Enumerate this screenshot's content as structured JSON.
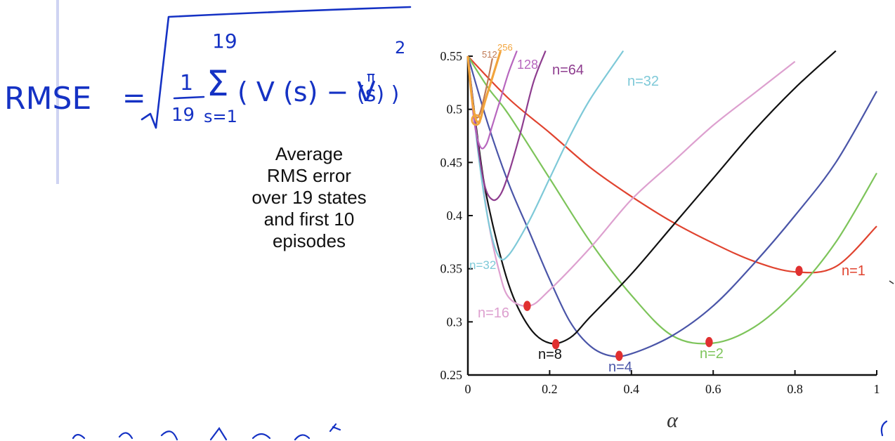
{
  "formula": {
    "lhs": "RMSE",
    "equals": "=",
    "numerator": "1",
    "denominator": "19",
    "sum_upper": "19",
    "sum_lower": "s=1",
    "body": "( V (s) − V",
    "superscript": "π",
    "body_end": "(s) )",
    "power": "2"
  },
  "caption": {
    "lines": [
      "Average",
      "RMS error",
      "over 19 states",
      "and first 10",
      "episodes"
    ]
  },
  "colors": {
    "n1": "#e0432f",
    "n2": "#7dc45a",
    "n4": "#4a55a8",
    "n8": "#111111",
    "n16": "#dda0cf",
    "n32": "#7ec9d8",
    "n64": "#8e3d8f",
    "n128": "#b766be",
    "n256": "#f2a43c",
    "n512": "#bf7a55",
    "annotation": "#e03030",
    "ink": "#1532c4"
  },
  "chart_data": {
    "type": "line",
    "title": "",
    "xlabel": "α",
    "ylabel": "",
    "xlim": [
      0,
      1
    ],
    "ylim": [
      0.25,
      0.55
    ],
    "xticks": [
      "0",
      "0.2",
      "0.4",
      "0.6",
      "0.8",
      "1"
    ],
    "yticks": [
      "0.25",
      "0.3",
      "0.35",
      "0.4",
      "0.45",
      "0.5",
      "0.55"
    ],
    "series": [
      {
        "name": "n=1",
        "label": "n=1",
        "color": "n1",
        "x": [
          0,
          0.1,
          0.2,
          0.3,
          0.4,
          0.5,
          0.6,
          0.7,
          0.8,
          0.9,
          1.0
        ],
        "y": [
          0.55,
          0.51,
          0.478,
          0.445,
          0.418,
          0.394,
          0.374,
          0.357,
          0.347,
          0.352,
          0.39
        ]
      },
      {
        "name": "n=2",
        "label": "n=2",
        "color": "n2",
        "x": [
          0,
          0.05,
          0.1,
          0.2,
          0.3,
          0.4,
          0.5,
          0.6,
          0.7,
          0.8,
          0.9,
          1.0
        ],
        "y": [
          0.55,
          0.52,
          0.495,
          0.435,
          0.375,
          0.325,
          0.287,
          0.28,
          0.295,
          0.328,
          0.375,
          0.44
        ]
      },
      {
        "name": "n=4",
        "label": "n=4",
        "color": "n4",
        "x": [
          0,
          0.05,
          0.1,
          0.15,
          0.2,
          0.25,
          0.3,
          0.35,
          0.4,
          0.5,
          0.6,
          0.7,
          0.8,
          0.9,
          1.0
        ],
        "y": [
          0.55,
          0.485,
          0.43,
          0.385,
          0.34,
          0.3,
          0.277,
          0.268,
          0.27,
          0.287,
          0.315,
          0.355,
          0.4,
          0.45,
          0.517
        ]
      },
      {
        "name": "n=8",
        "label": "n=8",
        "color": "n8",
        "x": [
          0,
          0.025,
          0.05,
          0.1,
          0.15,
          0.2,
          0.25,
          0.3,
          0.4,
          0.5,
          0.6,
          0.7,
          0.8,
          0.9
        ],
        "y": [
          0.55,
          0.47,
          0.41,
          0.335,
          0.295,
          0.28,
          0.285,
          0.305,
          0.345,
          0.39,
          0.435,
          0.48,
          0.52,
          0.555
        ]
      },
      {
        "name": "n=16",
        "label": "n=16",
        "color": "n16",
        "x": [
          0,
          0.025,
          0.05,
          0.075,
          0.1,
          0.15,
          0.2,
          0.3,
          0.4,
          0.5,
          0.6,
          0.7,
          0.8
        ],
        "y": [
          0.55,
          0.465,
          0.395,
          0.35,
          0.323,
          0.315,
          0.33,
          0.37,
          0.415,
          0.45,
          0.485,
          0.515,
          0.545
        ]
      },
      {
        "name": "n=32",
        "label": "n=32",
        "color": "n32",
        "x": [
          0,
          0.025,
          0.05,
          0.075,
          0.1,
          0.15,
          0.2,
          0.25,
          0.3,
          0.38
        ],
        "y": [
          0.55,
          0.46,
          0.395,
          0.362,
          0.363,
          0.395,
          0.435,
          0.475,
          0.51,
          0.555
        ]
      },
      {
        "name": "n=64",
        "label": "n=64",
        "color": "n64",
        "x": [
          0,
          0.02,
          0.04,
          0.06,
          0.08,
          0.1,
          0.13,
          0.16,
          0.19
        ],
        "y": [
          0.55,
          0.48,
          0.43,
          0.415,
          0.42,
          0.44,
          0.48,
          0.525,
          0.555
        ]
      },
      {
        "name": "n=128",
        "label": "128",
        "color": "n128",
        "x": [
          0,
          0.015,
          0.03,
          0.045,
          0.06,
          0.08,
          0.1,
          0.12
        ],
        "y": [
          0.55,
          0.49,
          0.465,
          0.467,
          0.485,
          0.51,
          0.535,
          0.555
        ]
      },
      {
        "name": "n=256",
        "label": "256",
        "color": "n256",
        "x": [
          0,
          0.01,
          0.02,
          0.03,
          0.04,
          0.06,
          0.08
        ],
        "y": [
          0.55,
          0.51,
          0.49,
          0.49,
          0.505,
          0.53,
          0.555
        ]
      },
      {
        "name": "n=512",
        "label": "512",
        "color": "n512",
        "x": [
          0,
          0.01,
          0.02,
          0.03,
          0.045,
          0.06
        ],
        "y": [
          0.55,
          0.51,
          0.493,
          0.497,
          0.52,
          0.548
        ]
      }
    ],
    "curve_labels_extra": [
      {
        "name": "n=32",
        "label": "n=32",
        "color": "n32"
      }
    ],
    "annotations": [
      {
        "type": "hand-drawn-dot",
        "x": 0.81,
        "y": 0.348
      },
      {
        "type": "hand-drawn-dot",
        "x": 0.59,
        "y": 0.281
      },
      {
        "type": "hand-drawn-dot",
        "x": 0.37,
        "y": 0.268
      },
      {
        "type": "hand-drawn-dot",
        "x": 0.215,
        "y": 0.279
      },
      {
        "type": "hand-drawn-dot",
        "x": 0.145,
        "y": 0.315
      },
      {
        "type": "hand-drawn-circle",
        "x": 0.02,
        "y": 0.49
      }
    ]
  }
}
